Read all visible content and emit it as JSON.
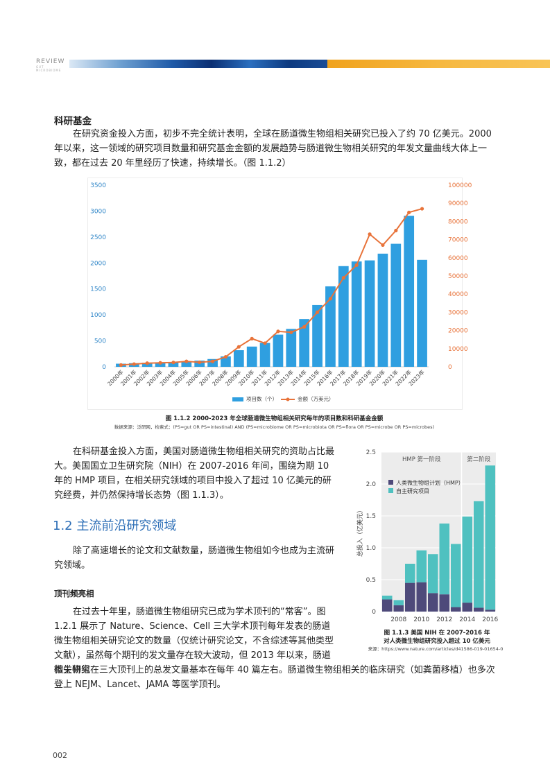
{
  "header": {
    "review_label": "REVIEW",
    "review_sub": "GUT MICROBIOME"
  },
  "section": {
    "title": "科研基金"
  },
  "paragraphs": {
    "p1": "在研究资金投入方面，初步不完全统计表明，全球在肠道微生物组相关研究已投入了约 70 亿美元。2000 年以来，这一领域的研究项目数量和研究基金金额的发展趋势与肠道微生物相关研究的年发文量曲线大体上一致，都在过去 20 年里经历了快速，持续增长。（图 1.1.2）",
    "p2": "在科研基金投入方面，美国对肠道微生物组相关研究的资助占比最大。美国国立卫生研究院（NIH）在 2007-2016 年间，围绕为期 10 年的 HMP 项目，在相关研究领域的项目中投入了超过 10 亿美元的研究经费，并仍然保持增长态势（图 1.1.3）。",
    "h2": "1.2 主流前沿研究领域",
    "p3": "除了高速增长的论文和文献数量，肠道微生物组如今也成为主流研究领域。",
    "h3": "顶刊频亮相",
    "p4": "在过去十年里，肠道微生物组研究已成为学术顶刊的“常客”。图 1.2.1 展示了 Nature、Science、Cell 三大学术顶刊每年发表的肠道微生物组相关研究论文的数量（仅统计研究论文，不含综述等其他类型文献），虽然每个期刊的发文量存在较大波动，但 2013 年以来，肠道微生物组",
    "p5": "相关研究在三大顶刊上的总发文量基本在每年 40 篇左右。肠道微生物组相关的临床研究（如粪菌移植）也多次登上 NEJM、Lancet、JAMA 等医学顶刊。"
  },
  "figure1": {
    "caption": "图 1.1.2   2000-2023 年全球肠道微生物组相关研究每年的项目数和科研基金金额",
    "source": "数据来源：泛研网，检索式：(PS=gut OR PS=intestinal) AND (PS=microbiome OR PS=microbiota OR PS=flora OR PS=microbe OR PS=microbes)"
  },
  "figure2": {
    "caption_line1": "图 1.1.3  美国 NIH 在 2007-2016 年",
    "caption_line2": "对人类微生物组研究投入超过 10 亿美元",
    "source": "来源：https://www.nature.com/articles/d41586-019-01654-0"
  },
  "page_number": "002",
  "colors": {
    "bar_blue": "#2f9fe0",
    "line_orange": "#e8733a",
    "hmp_purple": "#4e4a7a",
    "teal": "#4fc1c0",
    "heading_blue": "#2e6fb7"
  },
  "chart_data": [
    {
      "type": "bar",
      "categories": [
        "2000年",
        "2001年",
        "2002年",
        "2003年",
        "2004年",
        "2005年",
        "2006年",
        "2007年",
        "2008年",
        "2009年",
        "2010年",
        "2011年",
        "2012年",
        "2013年",
        "2014年",
        "2015年",
        "2016年",
        "2017年",
        "2018年",
        "2019年",
        "2020年",
        "2021年",
        "2022年",
        "2023年"
      ],
      "series": [
        {
          "name": "项目数（个）",
          "type": "bar",
          "axis": "left",
          "values": [
            60,
            70,
            80,
            85,
            90,
            100,
            120,
            150,
            200,
            320,
            390,
            460,
            620,
            730,
            920,
            1190,
            1550,
            1940,
            2030,
            2050,
            2180,
            2370,
            2910,
            2060
          ]
        },
        {
          "name": "金额（万美元）",
          "type": "line",
          "axis": "right",
          "values": [
            1000,
            1500,
            2000,
            2200,
            2400,
            3000,
            2500,
            3000,
            5500,
            11000,
            15500,
            13000,
            19500,
            19000,
            22000,
            30000,
            37500,
            49000,
            56000,
            73000,
            67000,
            75000,
            85000,
            87000
          ]
        }
      ],
      "ylim_left": [
        0,
        3500
      ],
      "yticks_left": [
        "0",
        "500",
        "1000",
        "1500",
        "2000",
        "2500",
        "3000",
        "3500"
      ],
      "ylim_right": [
        0,
        100000
      ],
      "yticks_right": [
        "0",
        "10000",
        "20000",
        "30000",
        "40000",
        "50000",
        "60000",
        "70000",
        "80000",
        "90000",
        "100000"
      ],
      "legend_position": "bottom",
      "grid": false
    },
    {
      "type": "bar",
      "stacked": true,
      "x": [
        2007,
        2008,
        2009,
        2010,
        2011,
        2012,
        2013,
        2014,
        2015,
        2016
      ],
      "xticks": [
        "2008",
        "2010",
        "2012",
        "2014",
        "2016"
      ],
      "series": [
        {
          "name": "人类微生物组计划（HMP）",
          "values": [
            0.19,
            0.1,
            0.45,
            0.46,
            0.29,
            0.27,
            0.07,
            0.14,
            0.06,
            0.03
          ]
        },
        {
          "name": "自主研究项目",
          "values": [
            0.06,
            0.08,
            0.3,
            0.5,
            0.61,
            1.11,
            0.99,
            1.35,
            1.67,
            2.26
          ]
        }
      ],
      "ylabel": "总投入（亿美元）",
      "ylim": [
        0,
        2.5
      ],
      "yticks": [
        "0",
        "0.5",
        "1.0",
        "1.5",
        "2.0",
        "2.5"
      ],
      "phase_labels": [
        "HMP 第一阶段",
        "第二阶段"
      ],
      "legend_position": "top-left",
      "grid": true
    }
  ]
}
